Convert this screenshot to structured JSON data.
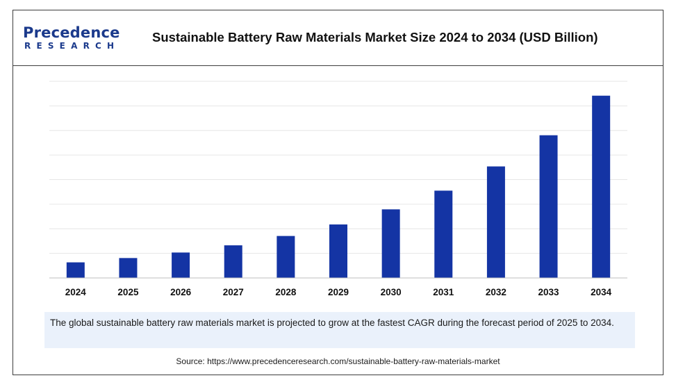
{
  "brand": {
    "name_top": "Precedence",
    "name_bottom": "RESEARCH"
  },
  "colors": {
    "bar": "#1434a4",
    "brand": "#1b3a8c",
    "note_background": "#eaf1fb"
  },
  "chart_data": {
    "type": "bar",
    "title": "Sustainable Battery Raw Materials Market Size 2024 to 2034 (USD Billion)",
    "xlabel": "",
    "ylabel": "",
    "categories": [
      "2024",
      "2025",
      "2026",
      "2027",
      "2028",
      "2029",
      "2030",
      "2031",
      "2032",
      "2033",
      "2034"
    ],
    "values": [
      6.5,
      8.3,
      10.6,
      13.6,
      17.5,
      22.3,
      28.6,
      36.4,
      46.5,
      59.5,
      76.0
    ],
    "ylim": [
      0,
      82
    ],
    "grid": true,
    "legend": "none",
    "value_labels_shown": false
  },
  "note": {
    "text": "The global sustainable battery raw materials market is projected to grow at the fastest CAGR during the forecast period of 2025 to 2034."
  },
  "source": {
    "text": "Source: https://www.precedenceresearch.com/sustainable-battery-raw-materials-market"
  }
}
